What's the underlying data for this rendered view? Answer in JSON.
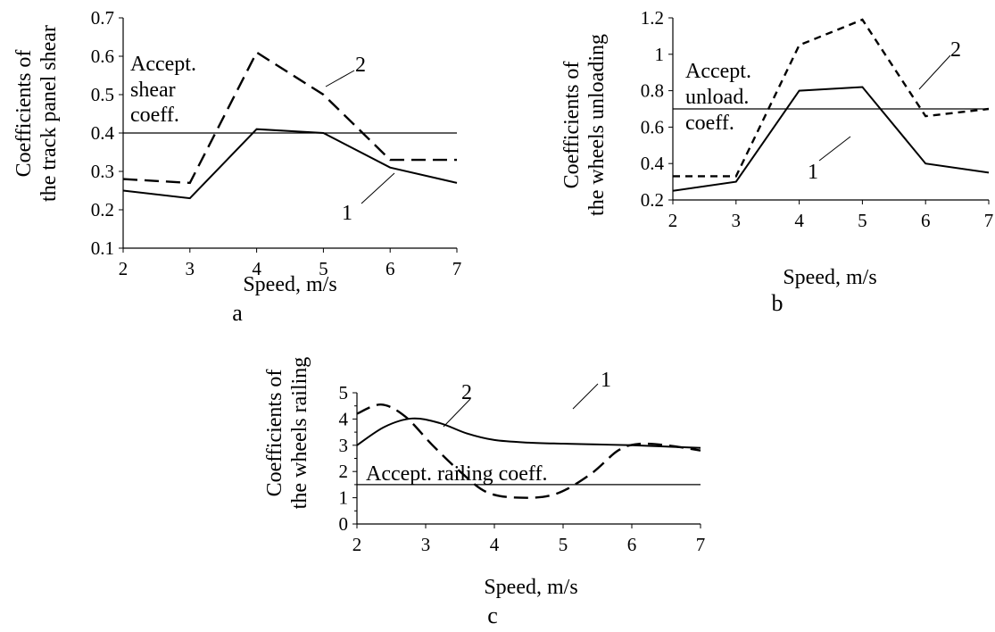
{
  "chart_data": [
    {
      "type": "line",
      "panel": "a",
      "xlabel": "Speed, m/s",
      "ylabel_lines": [
        "Coefficients of",
        "the track panel shear"
      ],
      "x": [
        2,
        3,
        4,
        5,
        6,
        7
      ],
      "xlim": [
        2,
        7
      ],
      "ylim": [
        0.1,
        0.7
      ],
      "xticks": [
        "2",
        "3",
        "4",
        "5",
        "6",
        "7"
      ],
      "yticks": [
        "0.1",
        "0.2",
        "0.3",
        "0.4",
        "0.5",
        "0.6",
        "0.7"
      ],
      "series": [
        {
          "name": "1",
          "style": "solid",
          "values": [
            0.25,
            0.23,
            0.41,
            0.4,
            0.31,
            0.27
          ]
        },
        {
          "name": "2",
          "style": "dashed",
          "values": [
            0.28,
            0.27,
            0.61,
            0.5,
            0.33,
            0.33
          ]
        }
      ],
      "threshold": {
        "value": 0.4,
        "label_lines": [
          "Accept.",
          "shear",
          "coeff."
        ]
      },
      "grid": false,
      "smooth": false
    },
    {
      "type": "line",
      "panel": "b",
      "xlabel": "Speed, m/s",
      "ylabel_lines": [
        "Coefficients of",
        "the wheels unloading"
      ],
      "x": [
        2,
        3,
        4,
        5,
        6,
        7
      ],
      "xlim": [
        2,
        7
      ],
      "ylim": [
        0.2,
        1.2
      ],
      "xticks": [
        "2",
        "3",
        "4",
        "5",
        "6",
        "7"
      ],
      "yticks": [
        "0.2",
        "0.4",
        "0.6",
        "0.8",
        "1",
        "1.2"
      ],
      "series": [
        {
          "name": "1",
          "style": "solid",
          "values": [
            0.25,
            0.3,
            0.8,
            0.82,
            0.4,
            0.35
          ]
        },
        {
          "name": "2",
          "style": "shortdash",
          "values": [
            0.33,
            0.33,
            1.05,
            1.19,
            0.66,
            0.7
          ]
        }
      ],
      "threshold": {
        "value": 0.7,
        "label_lines": [
          "Accept.",
          "unload.",
          "coeff."
        ]
      },
      "grid": false,
      "smooth": false
    },
    {
      "type": "line",
      "panel": "c",
      "xlabel": "Speed, m/s",
      "ylabel_lines": [
        "Coefficients of",
        "the wheels railing"
      ],
      "xlim": [
        2,
        7
      ],
      "ylim": [
        0,
        5
      ],
      "xticks": [
        "2",
        "3",
        "4",
        "5",
        "6",
        "7"
      ],
      "yticks": [
        "0",
        "1",
        "2",
        "3",
        "4",
        "5"
      ],
      "series": [
        {
          "name": "1",
          "style": "solid",
          "x": [
            2,
            2.4,
            2.8,
            3.2,
            3.6,
            4,
            4.5,
            5,
            5.5,
            6,
            6.5,
            7
          ],
          "values": [
            3.0,
            3.7,
            4.02,
            3.85,
            3.45,
            3.2,
            3.1,
            3.06,
            3.03,
            3.0,
            2.95,
            2.9
          ]
        },
        {
          "name": "2",
          "style": "dashed",
          "x": [
            2,
            2.35,
            2.7,
            3.1,
            3.5,
            3.9,
            4.4,
            4.9,
            5.4,
            5.8,
            6.1,
            6.5,
            7
          ],
          "values": [
            4.2,
            4.55,
            4.1,
            3.0,
            2.0,
            1.2,
            1.0,
            1.15,
            1.9,
            2.8,
            3.05,
            3.0,
            2.8
          ]
        }
      ],
      "threshold": {
        "value": 1.5,
        "label_lines": [
          "Accept. railing coeff."
        ]
      },
      "grid": false,
      "smooth": true
    }
  ]
}
